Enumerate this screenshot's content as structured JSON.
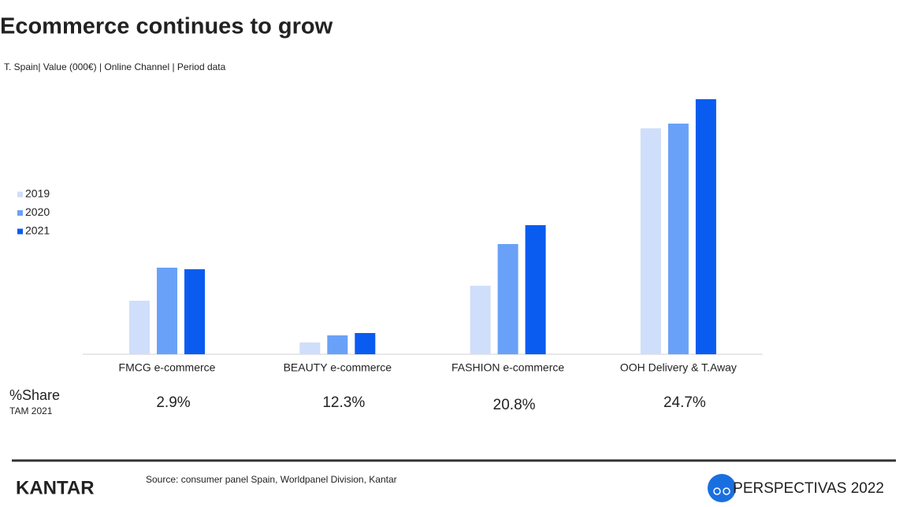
{
  "chart_data": {
    "type": "bar",
    "title": "Ecommerce continues to grow",
    "subtitle": "T. Spain| Value (000€) |  Online Channel | Period data",
    "categories": [
      "FMCG e-commerce",
      "BEAUTY e-commerce",
      "FASHION e-commerce",
      "OOH Delivery & T.Away"
    ],
    "series": [
      {
        "name": "2019",
        "color": "#cfdefa",
        "values": [
          68,
          15,
          87,
          287
        ]
      },
      {
        "name": "2020",
        "color": "#6aa1f8",
        "values": [
          110,
          24,
          140,
          293
        ]
      },
      {
        "name": "2021",
        "color": "#0a5cf0",
        "values": [
          108,
          27,
          164,
          324
        ]
      }
    ],
    "ylim": [
      0,
      340
    ],
    "legend": "left",
    "share_label": "%Share",
    "share_sublabel": "TAM 2021",
    "shares": [
      "2.9%",
      "12.3%",
      "20.8%",
      "24.7%"
    ]
  },
  "footer": {
    "brand": "KANTAR",
    "source": "Source: consumer panel Spain, Worldpanel Division, Kantar",
    "event": "PERSPECTIVAS 2022"
  }
}
